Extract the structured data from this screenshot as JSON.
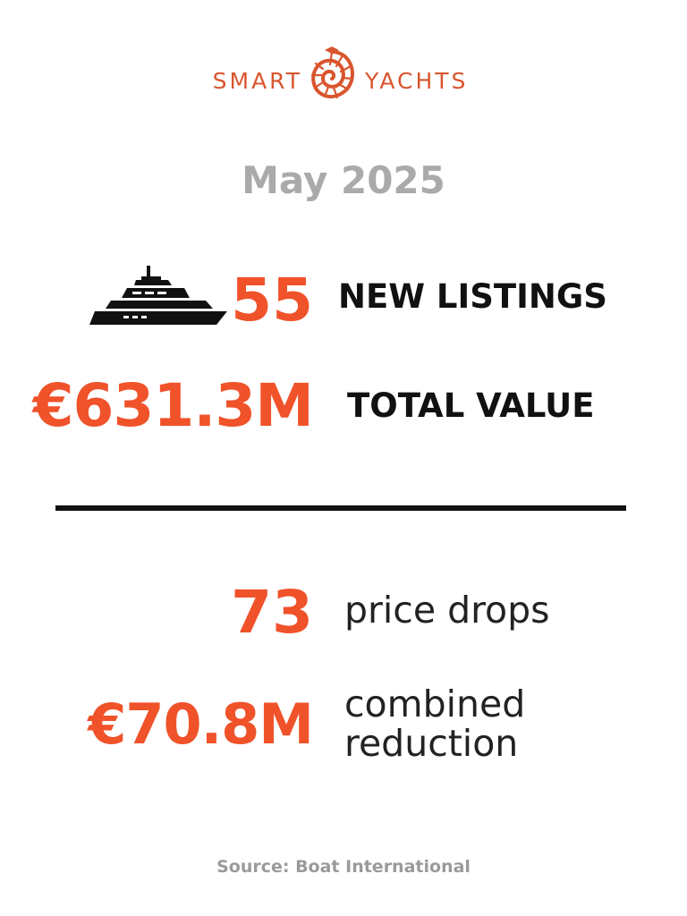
{
  "brand": {
    "left_word": "SMART",
    "right_word": "YACHTS",
    "logo_icon": "nautilus-shell-icon",
    "color": "#d9552e"
  },
  "period": "May 2025",
  "stats": {
    "new_listings": {
      "value": "55",
      "label": "NEW LISTINGS",
      "icon": "yacht-icon"
    },
    "total_value": {
      "value": "€631.3M",
      "label": "TOTAL VALUE"
    },
    "price_drops": {
      "value": "73",
      "label": "price drops"
    },
    "combined_reduction": {
      "value": "€70.8M",
      "label_line1": "combined",
      "label_line2": "reduction"
    }
  },
  "source": "Source: Boat International",
  "colors": {
    "accent": "#f0522a",
    "heading_gray": "#aaaaaa",
    "text_dark": "#111111",
    "source_gray": "#9a9a9a"
  }
}
